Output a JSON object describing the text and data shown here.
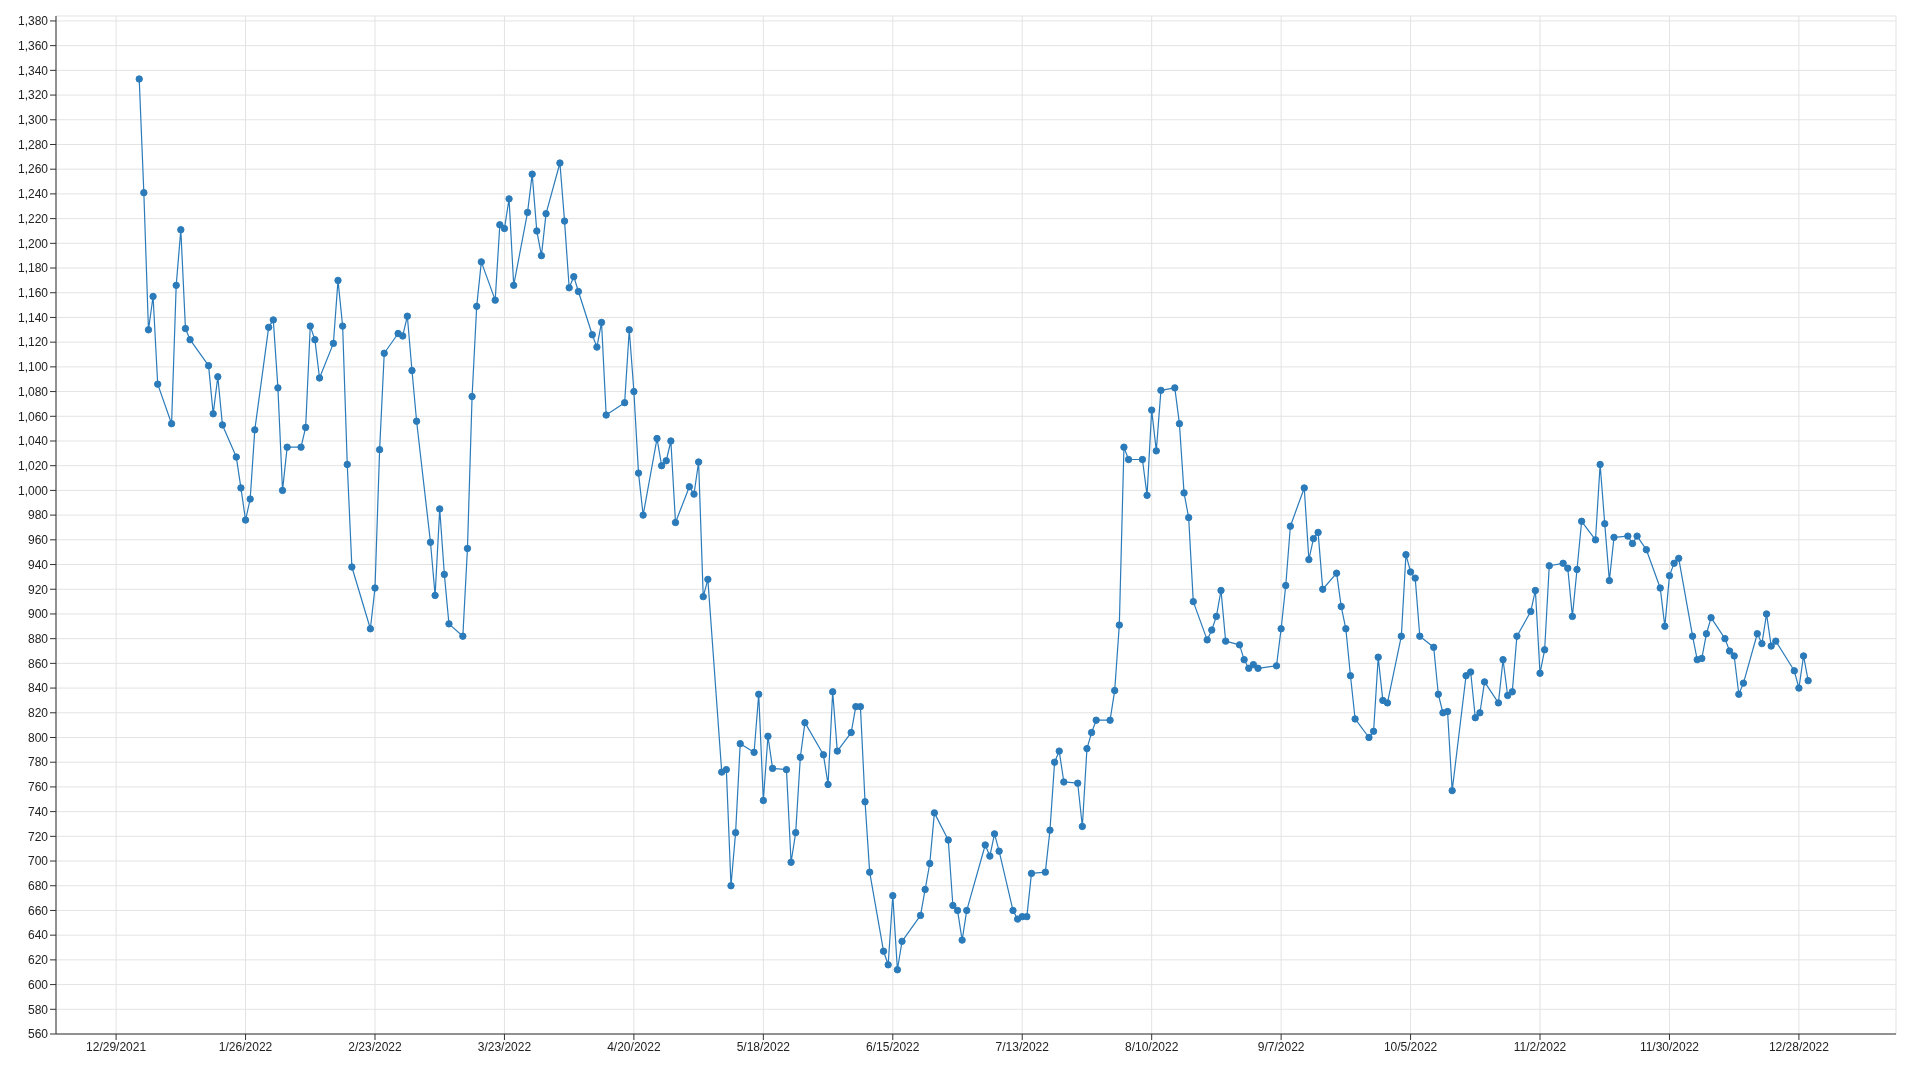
{
  "chart_data": {
    "type": "line",
    "color": "#2b7bba",
    "marker": "circle",
    "grid": true,
    "xlim": [
      "2021-12-16",
      "2023-01-18"
    ],
    "xticks": [
      {
        "value": "2021-12-29",
        "label": "12/29/2021"
      },
      {
        "value": "2022-01-26",
        "label": "1/26/2022"
      },
      {
        "value": "2022-02-23",
        "label": "2/23/2022"
      },
      {
        "value": "2022-03-23",
        "label": "3/23/2022"
      },
      {
        "value": "2022-04-20",
        "label": "4/20/2022"
      },
      {
        "value": "2022-05-18",
        "label": "5/18/2022"
      },
      {
        "value": "2022-06-15",
        "label": "6/15/2022"
      },
      {
        "value": "2022-07-13",
        "label": "7/13/2022"
      },
      {
        "value": "2022-08-10",
        "label": "8/10/2022"
      },
      {
        "value": "2022-09-07",
        "label": "9/7/2022"
      },
      {
        "value": "2022-10-05",
        "label": "10/5/2022"
      },
      {
        "value": "2022-11-02",
        "label": "11/2/2022"
      },
      {
        "value": "2022-11-30",
        "label": "11/30/2022"
      },
      {
        "value": "2022-12-28",
        "label": "12/28/2022"
      }
    ],
    "ylim": [
      560,
      1384
    ],
    "yticks": [
      560,
      580,
      600,
      620,
      640,
      660,
      680,
      700,
      720,
      740,
      760,
      780,
      800,
      820,
      840,
      860,
      880,
      900,
      920,
      940,
      960,
      980,
      {
        "value": 1000,
        "label": "1,000"
      },
      {
        "value": 1020,
        "label": "1,020"
      },
      {
        "value": 1040,
        "label": "1,040"
      },
      {
        "value": 1060,
        "label": "1,060"
      },
      {
        "value": 1080,
        "label": "1,080"
      },
      {
        "value": 1100,
        "label": "1,100"
      },
      {
        "value": 1120,
        "label": "1,120"
      },
      {
        "value": 1140,
        "label": "1,140"
      },
      {
        "value": 1160,
        "label": "1,160"
      },
      {
        "value": 1180,
        "label": "1,180"
      },
      {
        "value": 1200,
        "label": "1,200"
      },
      {
        "value": 1220,
        "label": "1,220"
      },
      {
        "value": 1240,
        "label": "1,240"
      },
      {
        "value": 1260,
        "label": "1,260"
      },
      {
        "value": 1280,
        "label": "1,280"
      },
      {
        "value": 1300,
        "label": "1,300"
      },
      {
        "value": 1320,
        "label": "1,320"
      },
      {
        "value": 1340,
        "label": "1,340"
      },
      {
        "value": 1360,
        "label": "1,360"
      },
      {
        "value": 1380,
        "label": "1,380"
      }
    ],
    "x": [
      "2022-01-03",
      "2022-01-04",
      "2022-01-05",
      "2022-01-06",
      "2022-01-07",
      "2022-01-10",
      "2022-01-11",
      "2022-01-12",
      "2022-01-13",
      "2022-01-14",
      "2022-01-18",
      "2022-01-19",
      "2022-01-20",
      "2022-01-21",
      "2022-01-24",
      "2022-01-25",
      "2022-01-26",
      "2022-01-27",
      "2022-01-28",
      "2022-01-31",
      "2022-02-01",
      "2022-02-02",
      "2022-02-03",
      "2022-02-04",
      "2022-02-07",
      "2022-02-08",
      "2022-02-09",
      "2022-02-10",
      "2022-02-11",
      "2022-02-14",
      "2022-02-15",
      "2022-02-16",
      "2022-02-17",
      "2022-02-18",
      "2022-02-22",
      "2022-02-23",
      "2022-02-24",
      "2022-02-25",
      "2022-02-28",
      "2022-03-01",
      "2022-03-02",
      "2022-03-03",
      "2022-03-04",
      "2022-03-07",
      "2022-03-08",
      "2022-03-09",
      "2022-03-10",
      "2022-03-11",
      "2022-03-14",
      "2022-03-15",
      "2022-03-16",
      "2022-03-17",
      "2022-03-18",
      "2022-03-21",
      "2022-03-22",
      "2022-03-23",
      "2022-03-24",
      "2022-03-25",
      "2022-03-28",
      "2022-03-29",
      "2022-03-30",
      "2022-03-31",
      "2022-04-01",
      "2022-04-04",
      "2022-04-05",
      "2022-04-06",
      "2022-04-07",
      "2022-04-08",
      "2022-04-11",
      "2022-04-12",
      "2022-04-13",
      "2022-04-14",
      "2022-04-18",
      "2022-04-19",
      "2022-04-20",
      "2022-04-21",
      "2022-04-22",
      "2022-04-25",
      "2022-04-26",
      "2022-04-27",
      "2022-04-28",
      "2022-04-29",
      "2022-05-02",
      "2022-05-03",
      "2022-05-04",
      "2022-05-05",
      "2022-05-06",
      "2022-05-09",
      "2022-05-10",
      "2022-05-11",
      "2022-05-12",
      "2022-05-13",
      "2022-05-16",
      "2022-05-17",
      "2022-05-18",
      "2022-05-19",
      "2022-05-20",
      "2022-05-23",
      "2022-05-24",
      "2022-05-25",
      "2022-05-26",
      "2022-05-27",
      "2022-05-31",
      "2022-06-01",
      "2022-06-02",
      "2022-06-03",
      "2022-06-06",
      "2022-06-07",
      "2022-06-08",
      "2022-06-09",
      "2022-06-10",
      "2022-06-13",
      "2022-06-14",
      "2022-06-15",
      "2022-06-16",
      "2022-06-17",
      "2022-06-21",
      "2022-06-22",
      "2022-06-23",
      "2022-06-24",
      "2022-06-27",
      "2022-06-28",
      "2022-06-29",
      "2022-06-30",
      "2022-07-01",
      "2022-07-05",
      "2022-07-06",
      "2022-07-07",
      "2022-07-08",
      "2022-07-11",
      "2022-07-12",
      "2022-07-13",
      "2022-07-14",
      "2022-07-15",
      "2022-07-18",
      "2022-07-19",
      "2022-07-20",
      "2022-07-21",
      "2022-07-22",
      "2022-07-25",
      "2022-07-26",
      "2022-07-27",
      "2022-07-28",
      "2022-07-29",
      "2022-08-01",
      "2022-08-02",
      "2022-08-03",
      "2022-08-04",
      "2022-08-05",
      "2022-08-08",
      "2022-08-09",
      "2022-08-10",
      "2022-08-11",
      "2022-08-12",
      "2022-08-15",
      "2022-08-16",
      "2022-08-17",
      "2022-08-18",
      "2022-08-19",
      "2022-08-22",
      "2022-08-23",
      "2022-08-24",
      "2022-08-25",
      "2022-08-26",
      "2022-08-29",
      "2022-08-30",
      "2022-08-31",
      "2022-09-01",
      "2022-09-02",
      "2022-09-06",
      "2022-09-07",
      "2022-09-08",
      "2022-09-09",
      "2022-09-12",
      "2022-09-13",
      "2022-09-14",
      "2022-09-15",
      "2022-09-16",
      "2022-09-19",
      "2022-09-20",
      "2022-09-21",
      "2022-09-22",
      "2022-09-23",
      "2022-09-26",
      "2022-09-27",
      "2022-09-28",
      "2022-09-29",
      "2022-09-30",
      "2022-10-03",
      "2022-10-04",
      "2022-10-05",
      "2022-10-06",
      "2022-10-07",
      "2022-10-10",
      "2022-10-11",
      "2022-10-12",
      "2022-10-13",
      "2022-10-14",
      "2022-10-17",
      "2022-10-18",
      "2022-10-19",
      "2022-10-20",
      "2022-10-21",
      "2022-10-24",
      "2022-10-25",
      "2022-10-26",
      "2022-10-27",
      "2022-10-28",
      "2022-10-31",
      "2022-11-01",
      "2022-11-02",
      "2022-11-03",
      "2022-11-04",
      "2022-11-07",
      "2022-11-08",
      "2022-11-09",
      "2022-11-10",
      "2022-11-11",
      "2022-11-14",
      "2022-11-15",
      "2022-11-16",
      "2022-11-17",
      "2022-11-18",
      "2022-11-21",
      "2022-11-22",
      "2022-11-23",
      "2022-11-25",
      "2022-11-28",
      "2022-11-29",
      "2022-11-30",
      "2022-12-01",
      "2022-12-02",
      "2022-12-05",
      "2022-12-06",
      "2022-12-07",
      "2022-12-08",
      "2022-12-09",
      "2022-12-12",
      "2022-12-13",
      "2022-12-14",
      "2022-12-15",
      "2022-12-16",
      "2022-12-19",
      "2022-12-20",
      "2022-12-21",
      "2022-12-22",
      "2022-12-23",
      "2022-12-27",
      "2022-12-28",
      "2022-12-29",
      "2022-12-30"
    ],
    "values": [
      1333,
      1241,
      1130,
      1157,
      1086,
      1054,
      1166,
      1211,
      1131,
      1122,
      1101,
      1062,
      1092,
      1053,
      1027,
      1002,
      976,
      993,
      1049,
      1132,
      1138,
      1083,
      1000,
      1035,
      1035,
      1051,
      1133,
      1122,
      1091,
      1119,
      1170,
      1133,
      1021,
      938,
      888,
      921,
      1033,
      1111,
      1127,
      1125,
      1141,
      1097,
      1056,
      958,
      915,
      985,
      932,
      892,
      882,
      953,
      1076,
      1149,
      1185,
      1154,
      1215,
      1212,
      1236,
      1166,
      1225,
      1256,
      1210,
      1190,
      1224,
      1265,
      1218,
      1164,
      1173,
      1161,
      1126,
      1116,
      1136,
      1061,
      1071,
      1130,
      1080,
      1014,
      980,
      1042,
      1020,
      1024,
      1040,
      974,
      1003,
      997,
      1023,
      914,
      928,
      772,
      774,
      680,
      723,
      795,
      788,
      835,
      749,
      801,
      775,
      774,
      699,
      723,
      784,
      812,
      786,
      762,
      837,
      789,
      804,
      825,
      825,
      748,
      691,
      627,
      616,
      672,
      612,
      635,
      656,
      677,
      698,
      739,
      717,
      664,
      660,
      636,
      660,
      713,
      704,
      722,
      708,
      660,
      653,
      655,
      655,
      690,
      691,
      725,
      780,
      789,
      764,
      763,
      728,
      791,
      804,
      814,
      814,
      838,
      891,
      1035,
      1025,
      1025,
      996,
      1065,
      1032,
      1081,
      1083,
      1054,
      998,
      978,
      910,
      879,
      887,
      898,
      919,
      878,
      875,
      863,
      856,
      859,
      856,
      858,
      888,
      923,
      971,
      1002,
      944,
      961,
      966,
      920,
      933,
      906,
      888,
      850,
      815,
      800,
      805,
      865,
      830,
      828,
      882,
      948,
      934,
      929,
      882,
      873,
      835,
      820,
      821,
      757,
      850,
      853,
      816,
      820,
      845,
      828,
      863,
      834,
      837,
      882,
      902,
      919,
      852,
      871,
      939,
      941,
      937,
      898,
      936,
      975,
      960,
      1021,
      973,
      927,
      962,
      963,
      957,
      963,
      952,
      921,
      890,
      931,
      941,
      945,
      882,
      863,
      864,
      884,
      897,
      880,
      870,
      866,
      835,
      844,
      884,
      876,
      900,
      874,
      878,
      854,
      840,
      866,
      846
    ]
  }
}
